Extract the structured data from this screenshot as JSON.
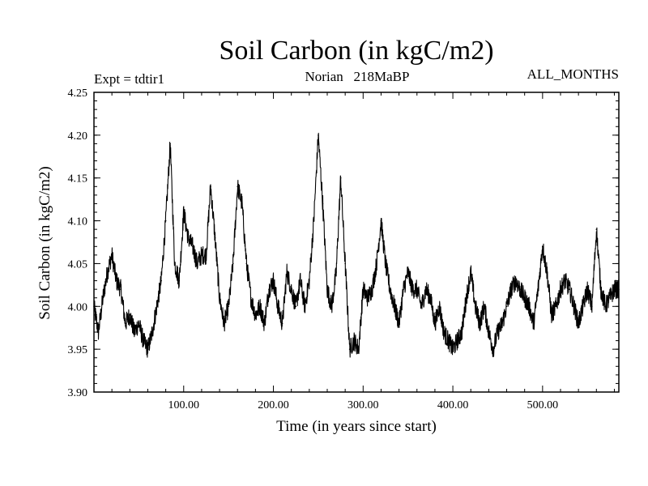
{
  "chart_data": {
    "type": "line",
    "title": "Soil Carbon (in kgC/m2)",
    "subtitle": "Norian   218MaBP",
    "experiment_label": "Expt = tdtir1",
    "months_label": "ALL_MONTHS",
    "xlabel": "Time (in years since start)",
    "ylabel": "Soil Carbon (in kgC/m2)",
    "xlim": [
      0,
      585
    ],
    "ylim": [
      3.9,
      4.25
    ],
    "x_ticks": [
      100,
      200,
      300,
      400,
      500
    ],
    "x_tick_labels": [
      "100.00",
      "200.00",
      "300.00",
      "400.00",
      "500.00"
    ],
    "y_ticks": [
      3.9,
      3.95,
      4.0,
      4.05,
      4.1,
      4.15,
      4.2,
      4.25
    ],
    "y_tick_labels": [
      "3.90",
      "3.95",
      "4.00",
      "4.05",
      "4.10",
      "4.15",
      "4.20",
      "4.25"
    ],
    "grid": false,
    "series": [
      {
        "name": "Soil Carbon",
        "color": "#000000",
        "x": [
          0,
          5,
          10,
          15,
          20,
          25,
          30,
          35,
          40,
          45,
          50,
          55,
          60,
          65,
          70,
          75,
          80,
          85,
          90,
          95,
          100,
          105,
          110,
          115,
          120,
          125,
          130,
          135,
          140,
          145,
          150,
          155,
          160,
          165,
          170,
          175,
          180,
          185,
          190,
          195,
          200,
          205,
          210,
          215,
          220,
          225,
          230,
          235,
          240,
          245,
          250,
          255,
          260,
          265,
          270,
          275,
          280,
          285,
          290,
          295,
          300,
          305,
          310,
          315,
          320,
          325,
          330,
          335,
          340,
          345,
          350,
          355,
          360,
          365,
          370,
          375,
          380,
          385,
          390,
          395,
          400,
          405,
          410,
          415,
          420,
          425,
          430,
          435,
          440,
          445,
          450,
          455,
          460,
          465,
          470,
          475,
          480,
          485,
          490,
          495,
          500,
          505,
          510,
          515,
          520,
          525,
          530,
          535,
          540,
          545,
          550,
          555,
          560,
          565,
          570,
          575,
          580,
          585
        ],
        "values": [
          4.0,
          3.97,
          4.01,
          4.04,
          4.06,
          4.03,
          4.02,
          3.98,
          3.99,
          3.97,
          3.98,
          3.96,
          3.95,
          3.97,
          4.0,
          4.03,
          4.1,
          4.19,
          4.05,
          4.03,
          4.11,
          4.08,
          4.07,
          4.05,
          4.06,
          4.06,
          4.14,
          4.08,
          4.01,
          3.98,
          4.0,
          4.05,
          4.14,
          4.12,
          4.05,
          4.01,
          3.99,
          4.0,
          3.98,
          4.02,
          4.03,
          4.0,
          3.98,
          4.04,
          4.02,
          4.0,
          4.03,
          4.0,
          4.03,
          4.1,
          4.2,
          4.12,
          4.02,
          4.0,
          4.04,
          4.15,
          4.05,
          3.95,
          3.96,
          3.95,
          4.02,
          4.01,
          4.02,
          4.05,
          4.1,
          4.05,
          4.02,
          4.0,
          3.98,
          4.02,
          4.04,
          4.02,
          4.02,
          4.0,
          4.02,
          4.01,
          3.98,
          4.0,
          3.97,
          3.96,
          3.95,
          3.96,
          3.97,
          4.01,
          4.04,
          4.0,
          3.98,
          4.0,
          3.97,
          3.95,
          3.97,
          3.98,
          4.0,
          4.02,
          4.03,
          4.02,
          4.01,
          4.0,
          3.98,
          4.02,
          4.07,
          4.04,
          3.99,
          4.0,
          4.02,
          4.03,
          4.02,
          4.0,
          3.98,
          4.0,
          4.02,
          4.0,
          4.09,
          4.02,
          4.0,
          4.01,
          4.02,
          4.02
        ]
      }
    ]
  }
}
